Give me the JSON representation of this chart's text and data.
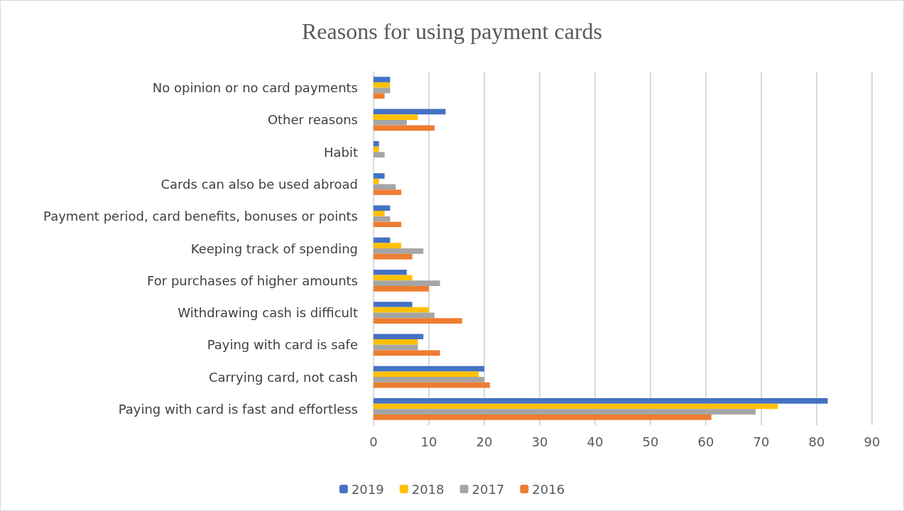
{
  "chart_data": {
    "type": "bar",
    "orientation": "horizontal",
    "title": "Reasons for using payment cards",
    "categories": [
      "No opinion or no card payments",
      "Other reasons",
      "Habit",
      "Cards can also be used abroad",
      "Payment period, card benefits, bonuses or points",
      "Keeping track of spending",
      "For purchases of higher amounts",
      "Withdrawing cash is difficult",
      "Paying with card is safe",
      "Carrying card, not cash",
      "Paying with card is fast and effortless"
    ],
    "series": [
      {
        "name": "2019",
        "color": "#4472c4",
        "values": [
          3,
          13,
          1,
          2,
          3,
          3,
          6,
          7,
          9,
          20,
          82
        ]
      },
      {
        "name": "2018",
        "color": "#ffc000",
        "values": [
          3,
          8,
          1,
          1,
          2,
          5,
          7,
          10,
          8,
          19,
          73
        ]
      },
      {
        "name": "2017",
        "color": "#a5a5a5",
        "values": [
          3,
          6,
          2,
          4,
          3,
          9,
          12,
          11,
          8,
          20,
          69
        ]
      },
      {
        "name": "2016",
        "color": "#ed7d31",
        "values": [
          2,
          11,
          0,
          5,
          5,
          7,
          10,
          16,
          12,
          21,
          61
        ]
      }
    ],
    "xlim": [
      0,
      90
    ],
    "xticks": [
      0,
      10,
      20,
      30,
      40,
      50,
      60,
      70,
      80,
      90
    ],
    "grid": "x",
    "legend": "bottom"
  }
}
